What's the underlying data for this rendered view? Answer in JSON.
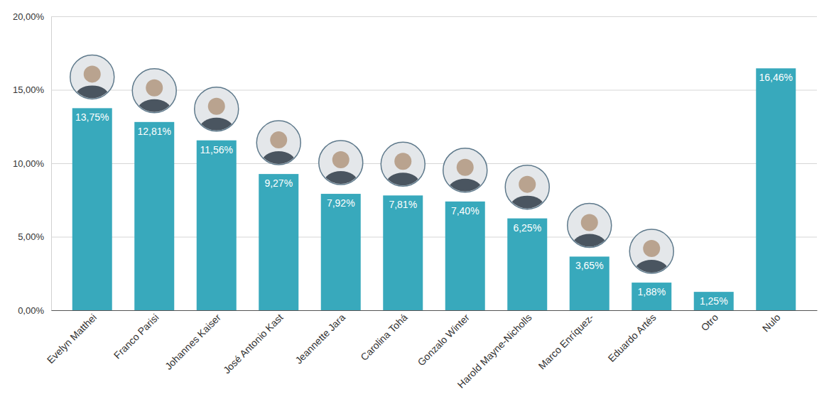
{
  "chart_data": {
    "type": "bar",
    "categories": [
      "Evelyn Matthei",
      "Franco Parisi",
      "Johannes Kaiser",
      "José Antonio Kast",
      "Jeannette Jara",
      "Carolina Tohá",
      "Gonzalo Winter",
      "Harold Mayne-Nicholls",
      "Marco Enríquez-",
      "Eduardo Artés",
      "Otro",
      "Nulo"
    ],
    "values": [
      13.75,
      12.81,
      11.56,
      9.27,
      7.92,
      7.81,
      7.4,
      6.25,
      3.65,
      1.88,
      1.25,
      16.46
    ],
    "value_labels": [
      "13,75%",
      "12,81%",
      "11,56%",
      "9,27%",
      "7,92%",
      "7,81%",
      "7,40%",
      "6,25%",
      "3,65%",
      "1,88%",
      "1,25%",
      "16,46%"
    ],
    "color": "#38a9bc",
    "ylim": [
      0,
      20
    ],
    "yticks": [
      {
        "value": 0,
        "label": "0,00%"
      },
      {
        "value": 5,
        "label": "5,00%"
      },
      {
        "value": 10,
        "label": "10,00%"
      },
      {
        "value": 15,
        "label": "15,00%"
      },
      {
        "value": 20,
        "label": "20,00%"
      }
    ],
    "grid": true,
    "data_labels": true
  }
}
